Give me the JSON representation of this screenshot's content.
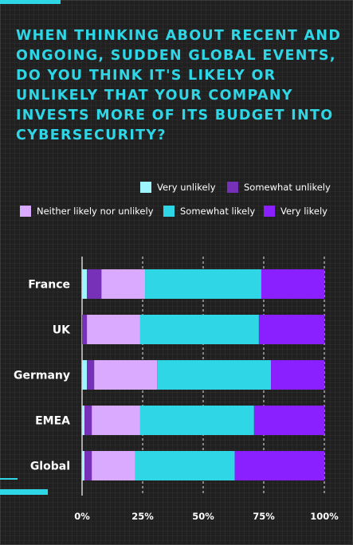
{
  "headline": "When thinking about recent and ongoing, sudden global events, do you think it's likely or unlikely that your company invests more of its budget into cybersecurity?",
  "chart_data": {
    "type": "bar",
    "orientation": "horizontal",
    "stacked": true,
    "categories": [
      "France",
      "UK",
      "Germany",
      "EMEA",
      "Global"
    ],
    "series": [
      {
        "name": "Very unlikely",
        "color": "#9ff5ff",
        "values": [
          2,
          0,
          2,
          1,
          1
        ]
      },
      {
        "name": "Somewhat unlikely",
        "color": "#7730b8",
        "values": [
          6,
          2,
          3,
          3,
          3
        ]
      },
      {
        "name": "Neither likely nor unlikely",
        "color": "#d9aaff",
        "values": [
          18,
          22,
          26,
          20,
          18
        ]
      },
      {
        "name": "Somewhat likely",
        "color": "#2fd6e6",
        "values": [
          48,
          49,
          47,
          47,
          41
        ]
      },
      {
        "name": "Very likely",
        "color": "#8a1fff",
        "values": [
          26,
          27,
          22,
          29,
          37
        ]
      }
    ],
    "xlim": [
      0,
      100
    ],
    "x_ticks": [
      "0%",
      "25%",
      "50%",
      "75%",
      "100%"
    ],
    "gridlines": "dashed vertical at 25% intervals",
    "legend_position": "top"
  }
}
